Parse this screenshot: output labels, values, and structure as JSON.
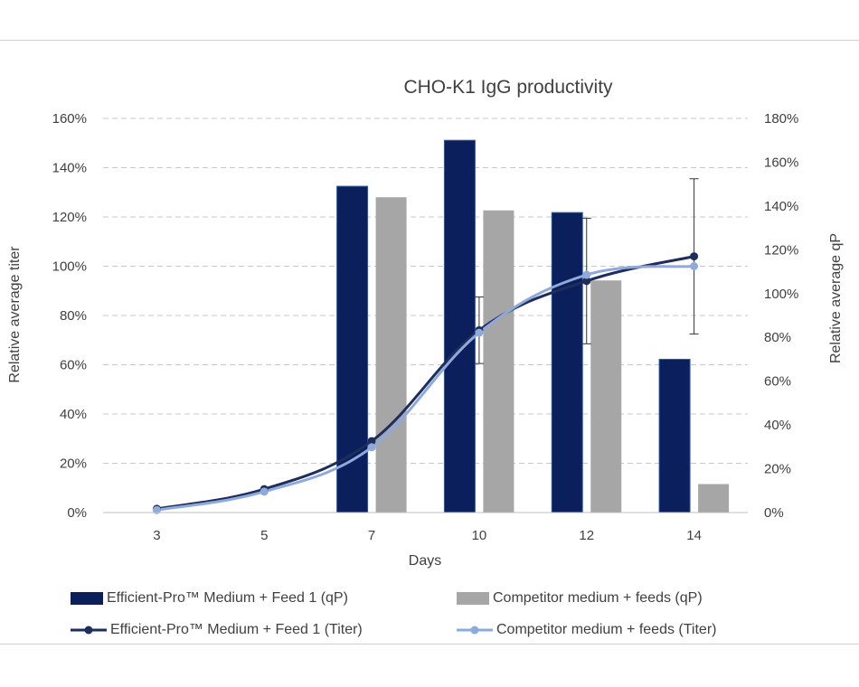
{
  "chart_data": {
    "type": "bar+line",
    "title": "CHO-K1 IgG productivity",
    "xlabel": "Days",
    "ylabel_left": "Relative average titer",
    "ylabel_right": "Relative average qP",
    "categories": [
      "3",
      "5",
      "7",
      "10",
      "12",
      "14"
    ],
    "ylim_left": [
      0,
      160
    ],
    "yticks_left": [
      "0%",
      "20%",
      "40%",
      "60%",
      "80%",
      "100%",
      "120%",
      "140%",
      "160%"
    ],
    "ylim_right": [
      0,
      180
    ],
    "yticks_right": [
      "0%",
      "20%",
      "40%",
      "60%",
      "80%",
      "100%",
      "120%",
      "140%",
      "160%",
      "180%"
    ],
    "grid": true,
    "bar_series": [
      {
        "name": "Efficient-Pro™ Medium + Feed 1 (qP)",
        "color": "#0b1f5c",
        "axis": "right",
        "values": [
          null,
          null,
          149,
          170,
          137,
          70
        ]
      },
      {
        "name": "Competitor medium + feeds (qP)",
        "color": "#a6a6a6",
        "axis": "right",
        "values": [
          null,
          null,
          144,
          138,
          106,
          13
        ]
      }
    ],
    "line_series": [
      {
        "name": "Efficient-Pro™ Medium + Feed 1 (Titer)",
        "color": "#1f2d5a",
        "axis": "left",
        "values": [
          1.5,
          9.5,
          29,
          74,
          94,
          104
        ],
        "error": [
          null,
          null,
          null,
          13.5,
          25.5,
          31.5
        ]
      },
      {
        "name": "Competitor medium + feeds (Titer)",
        "color": "#8eaadb",
        "axis": "left",
        "values": [
          1,
          8.5,
          26.5,
          73,
          96.5,
          100
        ],
        "error": [
          null,
          null,
          null,
          null,
          null,
          null
        ]
      }
    ]
  }
}
